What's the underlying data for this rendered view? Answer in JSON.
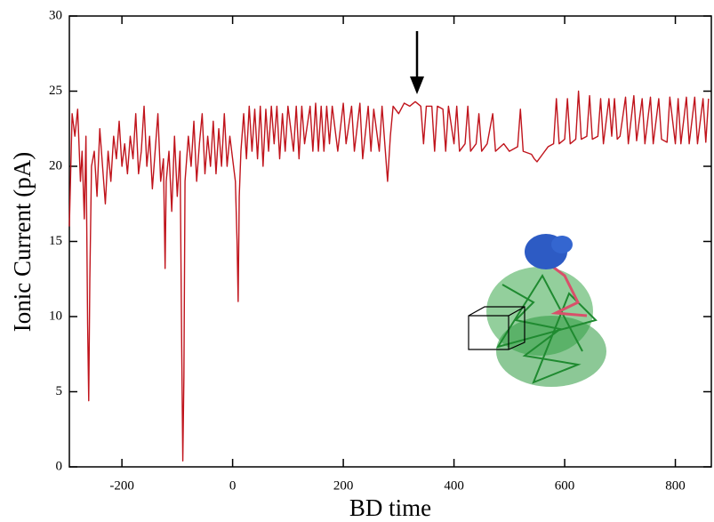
{
  "chart_data": {
    "type": "line",
    "x_label": "BD time",
    "y_label": "Ionic Current (pA)",
    "xlim": [
      -295,
      865
    ],
    "ylim": [
      0,
      30
    ],
    "xticks": [
      -200,
      0,
      200,
      400,
      600,
      800
    ],
    "yticks": [
      0,
      5,
      10,
      15,
      20,
      25,
      30
    ],
    "series": [
      {
        "color": "#c0141c",
        "x": [
          -295,
          -290,
          -285,
          -280,
          -275,
          -272,
          -268,
          -265,
          -262,
          -260,
          -258,
          -255,
          -250,
          -245,
          -240,
          -235,
          -230,
          -225,
          -220,
          -215,
          -210,
          -205,
          -200,
          -195,
          -190,
          -185,
          -180,
          -175,
          -170,
          -165,
          -160,
          -155,
          -150,
          -145,
          -140,
          -135,
          -130,
          -125,
          -122,
          -120,
          -115,
          -110,
          -105,
          -100,
          -95,
          -92,
          -90,
          -88,
          -86,
          -80,
          -75,
          -70,
          -65,
          -60,
          -55,
          -50,
          -45,
          -40,
          -35,
          -30,
          -25,
          -20,
          -15,
          -10,
          -5,
          0,
          5,
          8,
          10,
          12,
          15,
          20,
          25,
          30,
          35,
          40,
          45,
          50,
          55,
          60,
          65,
          70,
          75,
          80,
          85,
          90,
          95,
          100,
          110,
          115,
          120,
          125,
          130,
          140,
          145,
          150,
          155,
          160,
          165,
          170,
          175,
          180,
          190,
          200,
          205,
          215,
          220,
          230,
          235,
          245,
          250,
          255,
          265,
          270,
          280,
          285,
          290,
          300,
          310,
          320,
          330,
          340,
          345,
          350,
          360,
          365,
          370,
          380,
          385,
          390,
          400,
          405,
          410,
          420,
          425,
          430,
          440,
          445,
          450,
          460,
          470,
          475,
          490,
          500,
          515,
          520,
          525,
          540,
          545,
          550,
          560,
          570,
          580,
          585,
          590,
          600,
          605,
          610,
          620,
          625,
          630,
          640,
          645,
          650,
          660,
          665,
          670,
          680,
          685,
          690,
          695,
          700,
          710,
          715,
          725,
          730,
          740,
          745,
          755,
          760,
          770,
          775,
          785,
          790,
          800,
          805,
          810,
          820,
          825,
          835,
          840,
          850,
          855,
          860
        ],
        "values": [
          16,
          23.5,
          22,
          23.8,
          19,
          21,
          16.5,
          22,
          9.5,
          4.4,
          12.5,
          20,
          21,
          18,
          22.5,
          20,
          17.5,
          21,
          19,
          22,
          20.5,
          23,
          20,
          21.5,
          19.5,
          22,
          20.5,
          23.5,
          19.5,
          21,
          24,
          20,
          22,
          18.5,
          21,
          23.5,
          19,
          20.5,
          13.2,
          19,
          21,
          17,
          22,
          18,
          21,
          8,
          0.4,
          6,
          19,
          22,
          20,
          23,
          19,
          21.5,
          23.5,
          19.5,
          22,
          20,
          23,
          19.5,
          22.5,
          20,
          23.5,
          20,
          22,
          20.5,
          19,
          15,
          11,
          18,
          21,
          23.5,
          20.5,
          24,
          21,
          23.8,
          20.5,
          24,
          20,
          23.8,
          21,
          24,
          21.5,
          24,
          20.5,
          23.5,
          21,
          24,
          21,
          24,
          20.5,
          24,
          21.5,
          24,
          21,
          24.2,
          21,
          24,
          21,
          24,
          21.5,
          24,
          21,
          24.2,
          21.5,
          24,
          21,
          24.2,
          20.5,
          24,
          21,
          23.8,
          21,
          24,
          19,
          22,
          24,
          23.5,
          24.2,
          24,
          24.3,
          24,
          21.5,
          24,
          24,
          21,
          24,
          23.8,
          21,
          24,
          21.5,
          24,
          21,
          21.5,
          24,
          21,
          21.5,
          23.5,
          21,
          21.5,
          23.5,
          21,
          21.5,
          21,
          21.3,
          23.8,
          21,
          20.8,
          20.5,
          20.3,
          20.8,
          21.3,
          21.5,
          24.5,
          21.5,
          21.8,
          24.5,
          21.5,
          21.8,
          25,
          21.8,
          22,
          24.7,
          21.8,
          22,
          24.5,
          21.5,
          24.5,
          22,
          24.5,
          21.8,
          22,
          24.6,
          21.5,
          24.7,
          21.7,
          24.5,
          21.5,
          24.6,
          21.5,
          24.5,
          21.8,
          21.6,
          24.6,
          21.5,
          24.5,
          21.5,
          24.6,
          21.5,
          24.6,
          21.5,
          24.5,
          21.6,
          24.5
        ]
      }
    ]
  }
}
